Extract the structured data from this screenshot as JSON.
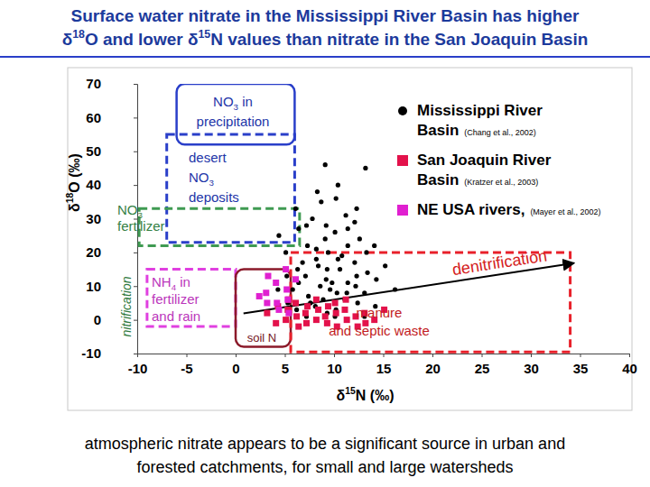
{
  "chart_data": {
    "type": "scatter",
    "title": [
      "Surface water nitrate in the Mississippi River Basin has higher",
      "δ18O and lower δ15N values than nitrate in the San Joaquin Basin"
    ],
    "caption": [
      "atmospheric nitrate appears to be a significant source in urban and",
      "forested catchments, for small and large watersheds"
    ],
    "x_label": "δ15N (‰)",
    "y_label": "δ18O (‰)",
    "xlim": [
      -10,
      40
    ],
    "ylim": [
      -10,
      70
    ],
    "xticks": [
      -10,
      -5,
      0,
      5,
      10,
      15,
      20,
      25,
      30,
      35,
      40
    ],
    "yticks": [
      -10,
      0,
      10,
      20,
      30,
      40,
      50,
      60,
      70
    ],
    "grid": false,
    "legend": "upper right",
    "series": [
      {
        "name": "Mississippi River Basin",
        "citation": "(Chang et al., 2002)",
        "color": "#000000",
        "marker": "circle",
        "x": [
          13.2,
          9.1,
          10.4,
          12.3,
          8.7,
          11.2,
          7.8,
          6.4,
          10.1,
          12.6,
          7.3,
          14.1,
          9.4,
          10.8,
          8.2,
          12.1,
          6.3,
          10.6,
          13.4,
          7.1,
          9.2,
          11.4,
          8.6,
          12.2,
          5.8,
          10.3,
          7.4,
          8.9,
          11.1,
          5.3,
          8.1,
          10.2,
          6.2,
          9.3,
          7.2,
          12.4,
          13.1,
          14.3,
          15.2,
          5.1,
          4.4,
          6.1,
          8.3,
          10.2,
          11.4,
          7.2,
          9.1,
          13.3,
          10.4,
          8.4,
          12.3,
          6.4,
          9.6,
          11.3,
          7.6,
          9.8,
          8.2,
          11.4,
          9.2,
          12.1,
          5.2,
          4.3,
          14.2,
          13.1,
          16.2,
          10.1,
          6.8,
          9.3
        ],
        "values": [
          45,
          46,
          40,
          33,
          35,
          31,
          30,
          27,
          26,
          24,
          22,
          22,
          20,
          19,
          18,
          17,
          15,
          15,
          14,
          13,
          12,
          11,
          10,
          10,
          9,
          8,
          7,
          6,
          6,
          5,
          4,
          3,
          3,
          2,
          1,
          5,
          8,
          12,
          16,
          20,
          25,
          33,
          38,
          36,
          27,
          28,
          24,
          20,
          18,
          16,
          13,
          11,
          9,
          8,
          5,
          11,
          21,
          22,
          28,
          29,
          13,
          9,
          4,
          1,
          9,
          1,
          17,
          15
        ]
      },
      {
        "name": "San Joaquin River Basin",
        "citation": "(Kratzer et al., 2003)",
        "color": "#e3124b",
        "marker": "square",
        "x": [
          3.2,
          4.1,
          5.3,
          5.1,
          6.2,
          6.4,
          7.1,
          7.3,
          8.2,
          8.4,
          9.1,
          9.3,
          10.2,
          10.1,
          11.3,
          11.1,
          12.2,
          12.4,
          13.1,
          6.1,
          4.3,
          8.2,
          14.1,
          9.4,
          7.2,
          10.3,
          5.4,
          13.2,
          11.2,
          15.1
        ],
        "values": [
          2,
          -1,
          3,
          0,
          1,
          -2,
          2,
          4,
          0,
          3,
          1,
          -1,
          2,
          5,
          0,
          3,
          1,
          -2,
          2,
          5,
          4,
          6,
          0,
          4,
          -1,
          -2,
          6,
          -1,
          6,
          3
        ]
      },
      {
        "name": "NE USA rivers,",
        "citation": "(Mayer et al., 2002)",
        "color": "#e020d0",
        "marker": "square",
        "x": [
          3.1,
          4.2,
          4.1,
          5.2,
          5.3,
          3.3,
          6.1,
          4.4,
          5.1,
          3.2,
          2.4,
          5.4
        ],
        "values": [
          8,
          5,
          11,
          9,
          6,
          13,
          12,
          3,
          15,
          5,
          7,
          2
        ]
      }
    ],
    "annotations": [
      {
        "label": [
          "NO3 in",
          "precipitation"
        ],
        "x0": -6,
        "x1": 6,
        "y0": 52,
        "y1": 70,
        "color": "#2a3fc9",
        "line_style": "solid"
      },
      {
        "label": [
          "desert",
          "NO3",
          "deposits"
        ],
        "x0": -7,
        "x1": 6,
        "y0": 23,
        "y1": 55,
        "color": "#2a3fc9",
        "line_style": "dashed"
      },
      {
        "label": [
          "NO3",
          "fertilizer"
        ],
        "x0": -9.8,
        "x1": 6.5,
        "y0": 22,
        "y1": 33,
        "color": "#3f9a52",
        "line_style": "dashed"
      },
      {
        "label": [
          "NH4 in",
          "fertilizer",
          "and rain"
        ],
        "x0": -9,
        "x1": 0,
        "y0": -2,
        "y1": 15,
        "color": "#e040e0",
        "line_style": "dashed"
      },
      {
        "label": [
          "soil N"
        ],
        "x0": 0,
        "x1": 5.6,
        "y0": -8,
        "y1": 15,
        "color": "#8b1a2a",
        "line_style": "solid"
      },
      {
        "label": [
          "manure",
          "and septic waste"
        ],
        "x0": 5.6,
        "x1": 34,
        "y0": -9.5,
        "y1": 20,
        "color": "#e8202a",
        "line_style": "dashed"
      }
    ],
    "arrows": [
      {
        "label": "denitrification",
        "x": [
          0.8,
          34.4
        ],
        "y": [
          1.9,
          16.8
        ],
        "color": "#d42020"
      }
    ],
    "vertical_label": "nitrification"
  }
}
